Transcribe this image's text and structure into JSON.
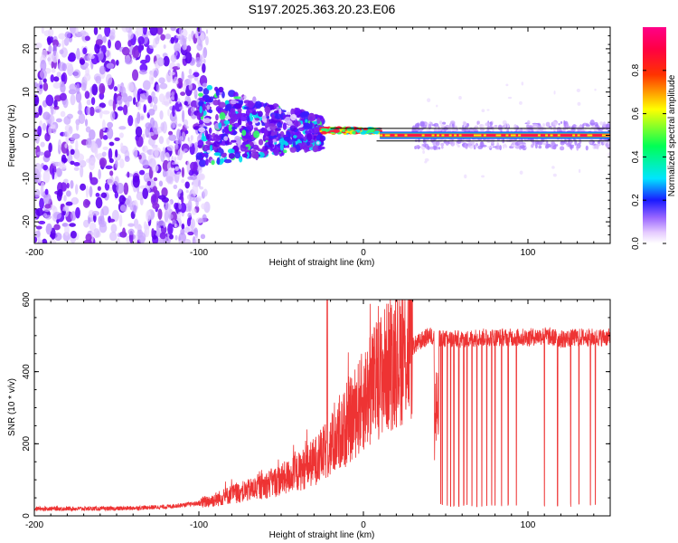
{
  "title": "S197.2025.363.20.23.E06",
  "chart_data": [
    {
      "type": "heatmap",
      "xlabel": "Height of straight line (km)",
      "ylabel": "Frequency (Hz)",
      "xlim": [
        -200,
        150
      ],
      "ylim": [
        -25,
        25
      ],
      "x_ticks": [
        -200,
        -100,
        0,
        100
      ],
      "x_tick_labels": [
        "-200",
        "-100",
        "0",
        "100"
      ],
      "y_ticks": [
        -20,
        -10,
        0,
        10,
        20
      ],
      "y_tick_labels": [
        "-20",
        "-10",
        "0",
        "10",
        "20"
      ],
      "grid": false,
      "colorbar": {
        "label": "Normalized spectral amplitude",
        "range": [
          0,
          1
        ],
        "ticks": [
          0.0,
          0.2,
          0.4,
          0.6,
          0.8
        ],
        "tick_labels": [
          "0.0",
          "0.2",
          "0.4",
          "0.6",
          "0.8"
        ]
      },
      "regions": [
        {
          "x_range": [
            -200,
            -100
          ],
          "freq_range": [
            -25,
            25
          ],
          "amplitude": 0.15,
          "description": "broadband scatter"
        },
        {
          "x_range": [
            -100,
            -25
          ],
          "freq_range_start": [
            -7,
            12
          ],
          "freq_range_end": [
            -3,
            4
          ],
          "amplitude": 0.3
        },
        {
          "x_range": [
            -25,
            10
          ],
          "freq": 1.0,
          "amplitude": 0.95
        },
        {
          "x_range": [
            10,
            150
          ],
          "freq": 0.0,
          "amplitude": 0.95
        },
        {
          "x_range": [
            30,
            150
          ],
          "freq_range": [
            -3,
            3
          ],
          "amplitude": 0.12
        }
      ]
    },
    {
      "type": "line",
      "xlabel": "Height of straight line (km)",
      "ylabel": "SNR (10 * v/v)",
      "xlim": [
        -200,
        150
      ],
      "ylim": [
        0,
        600
      ],
      "x_ticks": [
        -200,
        -100,
        0,
        100
      ],
      "x_tick_labels": [
        "-200",
        "-100",
        "0",
        "100"
      ],
      "y_ticks": [
        0,
        200,
        400,
        600
      ],
      "y_tick_labels": [
        "0",
        "200",
        "400",
        "600"
      ],
      "grid": false,
      "color": "#ee3333",
      "x": [
        -200,
        -150,
        -120,
        -100,
        -90,
        -80,
        -70,
        -60,
        -50,
        -40,
        -30,
        -20,
        -10,
        0,
        10,
        20,
        30,
        40,
        50,
        60,
        70,
        80,
        90,
        100,
        110,
        120,
        130,
        140,
        150
      ],
      "y": [
        20,
        20,
        25,
        35,
        45,
        60,
        70,
        85,
        100,
        120,
        150,
        190,
        250,
        320,
        390,
        440,
        470,
        500,
        490,
        490,
        495,
        495,
        495,
        495,
        500,
        490,
        495,
        495,
        495
      ],
      "dropouts_x": [
        45,
        47,
        48,
        51,
        53,
        55,
        58,
        61,
        63,
        66,
        69,
        72,
        75,
        78,
        80,
        84,
        88,
        93,
        110,
        118,
        126,
        131,
        138,
        141
      ],
      "dropout_level": 25,
      "peak": {
        "x": -22,
        "y": 605
      }
    }
  ]
}
